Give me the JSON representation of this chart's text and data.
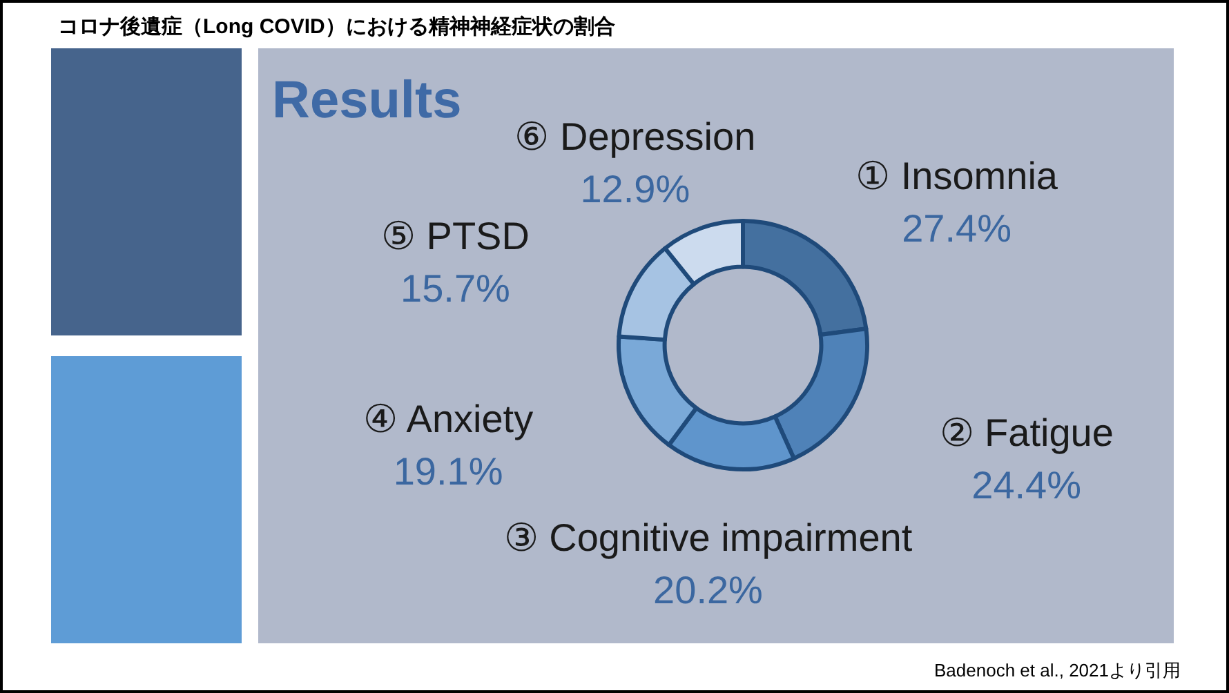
{
  "chart_data": {
    "type": "donut",
    "title": "コロナ後遺症（Long COVID）における精神神経症状の割合",
    "subtitle": "Results",
    "categories": [
      "① Insomnia",
      "② Fatigue",
      "③ Cognitive impairment",
      "④ Anxiety",
      "⑤ PTSD",
      "⑥ Depression"
    ],
    "values": [
      27.4,
      24.4,
      20.2,
      19.1,
      15.7,
      12.9
    ],
    "value_labels": [
      "27.4%",
      "24.4%",
      "20.2%",
      "19.1%",
      "15.7%",
      "12.9%"
    ],
    "colors": [
      "#44709f",
      "#4f82b8",
      "#5f95cc",
      "#7aa9d8",
      "#a6c3e3",
      "#ccdbee"
    ],
    "annotations": [
      "Badenoch et al., 2021より引用"
    ]
  }
}
